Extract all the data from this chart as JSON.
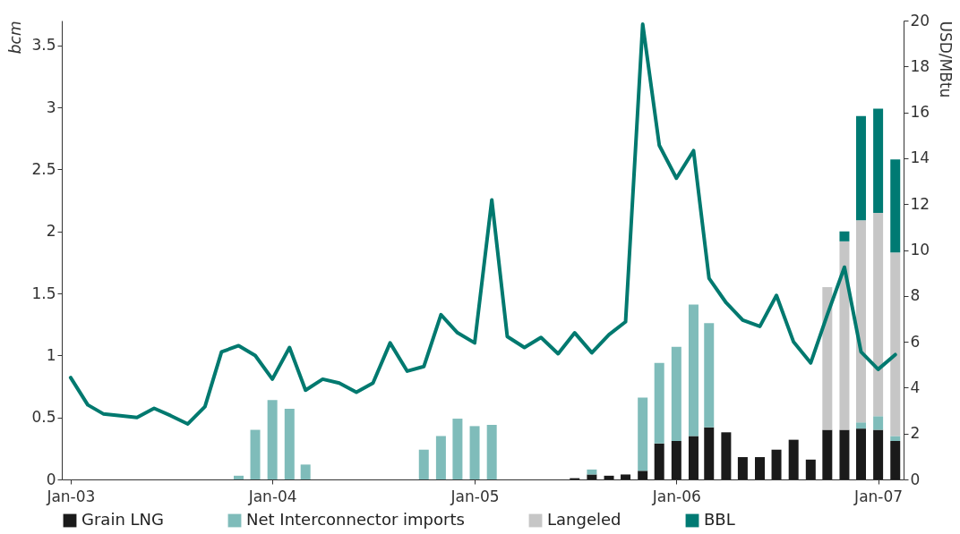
{
  "chart_data": {
    "type": "bar",
    "stacked": true,
    "ylabel": "bcm",
    "y2label": "USD/MBtu",
    "x": [
      "2003-01",
      "2003-02",
      "2003-03",
      "2003-04",
      "2003-05",
      "2003-06",
      "2003-07",
      "2003-08",
      "2003-09",
      "2003-10",
      "2003-11",
      "2003-12",
      "2004-01",
      "2004-02",
      "2004-03",
      "2004-04",
      "2004-05",
      "2004-06",
      "2004-07",
      "2004-08",
      "2004-09",
      "2004-10",
      "2004-11",
      "2004-12",
      "2005-01",
      "2005-02",
      "2005-03",
      "2005-04",
      "2005-05",
      "2005-06",
      "2005-07",
      "2005-08",
      "2005-09",
      "2005-10",
      "2005-11",
      "2005-12",
      "2006-01",
      "2006-02",
      "2006-03",
      "2006-04",
      "2006-05",
      "2006-06",
      "2006-07",
      "2006-08",
      "2006-09",
      "2006-10",
      "2006-11",
      "2006-12",
      "2007-01",
      "2007-02"
    ],
    "xlim": [
      "2002-12-16",
      "2007-02-16"
    ],
    "xticks": [
      {
        "value": "2003-01",
        "label": "Jan-03"
      },
      {
        "value": "2004-01",
        "label": "Jan-04"
      },
      {
        "value": "2005-01",
        "label": "Jan-05"
      },
      {
        "value": "2006-01",
        "label": "Jan-06"
      },
      {
        "value": "2007-01",
        "label": "Jan-07"
      }
    ],
    "ylim": [
      0,
      3.7
    ],
    "yticks": [
      0,
      0.5,
      1,
      1.5,
      2,
      2.5,
      3,
      3.5
    ],
    "y2lim": [
      0,
      20
    ],
    "y2ticks": [
      0,
      2,
      4,
      6,
      8,
      10,
      12,
      14,
      16,
      18,
      20
    ],
    "grid": false,
    "legend": "bottom",
    "series": [
      {
        "name": "Grain LNG",
        "color": "#1a1a1a",
        "values": [
          null,
          null,
          null,
          null,
          null,
          null,
          null,
          null,
          null,
          null,
          null,
          null,
          null,
          null,
          null,
          null,
          null,
          null,
          null,
          null,
          null,
          null,
          null,
          null,
          null,
          null,
          null,
          null,
          null,
          null,
          0.01,
          0.04,
          0.03,
          0.04,
          0.07,
          0.29,
          0.31,
          0.35,
          0.42,
          0.38,
          0.18,
          0.18,
          0.24,
          0.32,
          0.16,
          0.4,
          0.4,
          0.41,
          0.4,
          0.31
        ]
      },
      {
        "name": "Net Interconnector imports",
        "color": "#7fbcba",
        "values": [
          null,
          null,
          null,
          null,
          null,
          null,
          null,
          null,
          null,
          null,
          0.03,
          0.4,
          0.64,
          0.57,
          0.12,
          null,
          null,
          null,
          null,
          null,
          null,
          0.24,
          0.35,
          0.49,
          0.43,
          0.44,
          null,
          null,
          null,
          null,
          null,
          0.04,
          null,
          null,
          0.59,
          0.65,
          0.76,
          1.06,
          0.84,
          null,
          null,
          null,
          null,
          null,
          null,
          null,
          null,
          0.05,
          0.11,
          0.04
        ]
      },
      {
        "name": "Langeled",
        "color": "#c6c6c6",
        "values": [
          null,
          null,
          null,
          null,
          null,
          null,
          null,
          null,
          null,
          null,
          null,
          null,
          null,
          null,
          null,
          null,
          null,
          null,
          null,
          null,
          null,
          null,
          null,
          null,
          null,
          null,
          null,
          null,
          null,
          null,
          null,
          null,
          null,
          null,
          null,
          null,
          null,
          null,
          null,
          null,
          null,
          null,
          null,
          null,
          null,
          1.15,
          1.52,
          1.63,
          1.64,
          1.48
        ]
      },
      {
        "name": "BBL",
        "color": "#007a73",
        "values": [
          null,
          null,
          null,
          null,
          null,
          null,
          null,
          null,
          null,
          null,
          null,
          null,
          null,
          null,
          null,
          null,
          null,
          null,
          null,
          null,
          null,
          null,
          null,
          null,
          null,
          null,
          null,
          null,
          null,
          null,
          null,
          null,
          null,
          null,
          null,
          null,
          null,
          null,
          null,
          null,
          null,
          null,
          null,
          null,
          null,
          null,
          0.08,
          0.84,
          0.84,
          0.75
        ]
      },
      {
        "type": "line",
        "axis": "y2",
        "color": "#00796f",
        "line_style": "solid",
        "marker": "none",
        "values": [
          4.44,
          3.25,
          2.86,
          2.78,
          2.7,
          3.1,
          2.78,
          2.42,
          3.17,
          5.56,
          5.83,
          5.4,
          4.37,
          5.75,
          3.89,
          4.37,
          4.2,
          3.8,
          4.2,
          5.95,
          4.72,
          4.92,
          7.18,
          6.39,
          5.95,
          12.18,
          6.23,
          5.75,
          6.19,
          5.48,
          6.39,
          5.52,
          6.31,
          6.87,
          19.84,
          14.56,
          13.13,
          14.33,
          8.77,
          7.7,
          6.94,
          6.67,
          8.02,
          5.99,
          5.08,
          7.18,
          9.25,
          5.56,
          4.8,
          5.44
        ]
      }
    ]
  }
}
